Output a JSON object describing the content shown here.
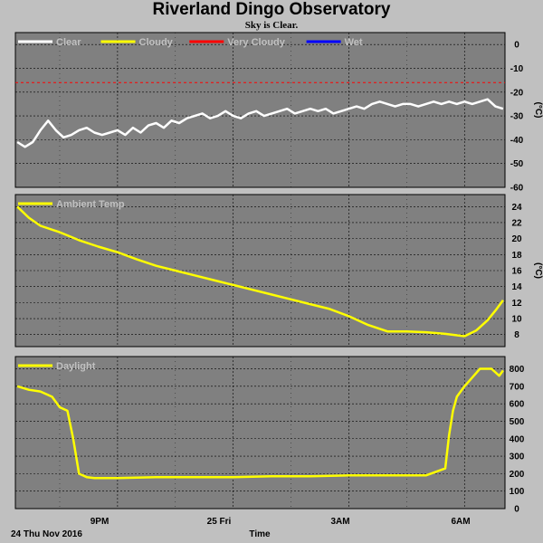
{
  "header": {
    "title": "Riverland Dingo Observatory",
    "subtitle": "Sky is Clear."
  },
  "footer": {
    "date": "24 Thu Nov 2016",
    "xlabel": "Time"
  },
  "x_ticks": [
    {
      "label": "9PM",
      "t": 21
    },
    {
      "label": "25 Fri",
      "t": 24
    },
    {
      "label": "3AM",
      "t": 27
    },
    {
      "label": "6AM",
      "t": 30
    }
  ],
  "x_range": [
    18.35,
    31.05
  ],
  "colors": {
    "plot_bg": "#808080",
    "grid": "#000000",
    "page_bg": "#c0c0c0"
  },
  "chart_data": [
    {
      "type": "line",
      "ylabel": "(°C)",
      "ylim": [
        -60,
        5
      ],
      "yticks": [
        0,
        -10,
        -20,
        -30,
        -40,
        -50,
        -60
      ],
      "legend": [
        {
          "name": "Clear",
          "color": "#ffffff"
        },
        {
          "name": "Cloudy",
          "color": "#ffff00"
        },
        {
          "name": "Very Cloudy",
          "color": "#ff0000"
        },
        {
          "name": "Wet",
          "color": "#0000ff"
        }
      ],
      "thresholds": [
        {
          "y": -16,
          "color": "#ff0000",
          "style": "dashed"
        }
      ],
      "series": [
        {
          "name": "Clear",
          "color": "#ffffff",
          "x": [
            18.4,
            18.6,
            18.8,
            19.0,
            19.2,
            19.4,
            19.6,
            19.8,
            20.0,
            20.2,
            20.4,
            20.6,
            20.8,
            21.0,
            21.2,
            21.4,
            21.6,
            21.8,
            22.0,
            22.2,
            22.4,
            22.6,
            22.8,
            23.0,
            23.2,
            23.4,
            23.6,
            23.8,
            24.0,
            24.2,
            24.4,
            24.6,
            24.8,
            25.0,
            25.2,
            25.4,
            25.6,
            25.8,
            26.0,
            26.2,
            26.4,
            26.6,
            26.8,
            27.0,
            27.2,
            27.4,
            27.6,
            27.8,
            28.0,
            28.2,
            28.4,
            28.6,
            28.8,
            29.0,
            29.2,
            29.4,
            29.6,
            29.8,
            30.0,
            30.2,
            30.4,
            30.6,
            30.8,
            31.0
          ],
          "y": [
            -41,
            -43,
            -41,
            -36,
            -32,
            -36,
            -39,
            -38,
            -36,
            -35,
            -37,
            -38,
            -37,
            -36,
            -38,
            -35,
            -37,
            -34,
            -33,
            -35,
            -32,
            -33,
            -31,
            -30,
            -29,
            -31,
            -30,
            -28,
            -30,
            -31,
            -29,
            -28,
            -30,
            -29,
            -28,
            -27,
            -29,
            -28,
            -27,
            -28,
            -27,
            -29,
            -28,
            -27,
            -26,
            -27,
            -25,
            -24,
            -25,
            -26,
            -25,
            -25,
            -26,
            -25,
            -24,
            -25,
            -24,
            -25,
            -24,
            -25,
            -24,
            -23,
            -26,
            -27
          ]
        }
      ]
    },
    {
      "type": "line",
      "ylabel": "(°C)",
      "ylim": [
        6.5,
        25.5
      ],
      "yticks": [
        24,
        22,
        20,
        18,
        16,
        14,
        12,
        10,
        8
      ],
      "legend": [
        {
          "name": "Ambient Temp",
          "color": "#ffff00"
        }
      ],
      "series": [
        {
          "name": "Ambient Temp",
          "color": "#ffff00",
          "x": [
            18.4,
            18.7,
            19.0,
            19.5,
            20.0,
            20.5,
            21.0,
            21.5,
            22.0,
            22.5,
            23.0,
            23.5,
            24.0,
            24.5,
            25.0,
            25.5,
            26.0,
            26.5,
            27.0,
            27.5,
            28.0,
            28.5,
            29.0,
            29.5,
            30.0,
            30.3,
            30.6,
            30.8,
            31.0
          ],
          "y": [
            24,
            22.6,
            21.6,
            20.8,
            19.8,
            19.0,
            18.3,
            17.4,
            16.6,
            16.0,
            15.4,
            14.8,
            14.2,
            13.6,
            13.0,
            12.4,
            11.8,
            11.2,
            10.3,
            9.2,
            8.4,
            8.4,
            8.3,
            8.1,
            7.8,
            8.5,
            9.8,
            11.0,
            12.3
          ]
        }
      ]
    },
    {
      "type": "line",
      "ylabel": "",
      "ylim": [
        0,
        870
      ],
      "yticks": [
        800,
        700,
        600,
        500,
        400,
        300,
        200,
        100,
        0
      ],
      "legend": [
        {
          "name": "Daylight",
          "color": "#ffff00"
        }
      ],
      "series": [
        {
          "name": "Daylight",
          "color": "#ffff00",
          "x": [
            18.4,
            18.7,
            19.0,
            19.3,
            19.5,
            19.7,
            19.85,
            20.0,
            20.2,
            20.4,
            21.0,
            22.0,
            23.0,
            24.0,
            25.0,
            26.0,
            27.0,
            28.0,
            29.0,
            29.5,
            29.6,
            29.7,
            29.8,
            30.0,
            30.2,
            30.4,
            30.7,
            30.9,
            31.0
          ],
          "y": [
            700,
            680,
            670,
            640,
            580,
            560,
            400,
            200,
            180,
            175,
            175,
            180,
            180,
            180,
            185,
            185,
            190,
            190,
            190,
            230,
            420,
            560,
            640,
            700,
            750,
            800,
            800,
            760,
            790
          ]
        }
      ]
    }
  ]
}
